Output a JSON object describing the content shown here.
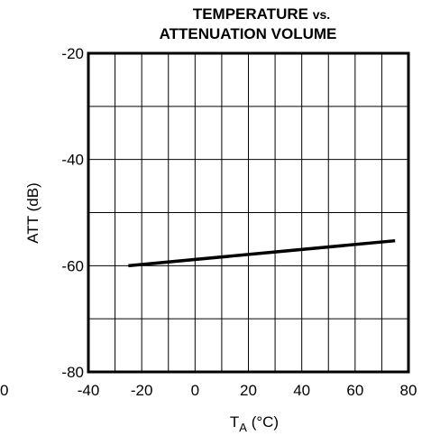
{
  "chart_data": {
    "type": "line",
    "title_line1_main": "TEMPERATURE",
    "title_line1_small": "vs.",
    "title_line2": "ATTENUATION VOLUME",
    "xlabel_main": "T",
    "xlabel_sub": "A",
    "xlabel_unit": " (°C)",
    "ylabel": "ATT (dB)",
    "xlim": [
      -40,
      80
    ],
    "ylim": [
      -80,
      -20
    ],
    "x_ticks": [
      -40,
      -20,
      0,
      20,
      40,
      60,
      80
    ],
    "x_tick_labels": [
      "-40",
      "-20",
      "0",
      "20",
      "40",
      "60",
      "80"
    ],
    "y_ticks": [
      -20,
      -40,
      -60,
      -80
    ],
    "y_tick_labels": [
      "-20",
      "-40",
      "-60",
      "-80"
    ],
    "x_minor_step": 10,
    "y_minor_step": 10,
    "grid": true,
    "stray_left_label": "0",
    "series": [
      {
        "x": [
          -25,
          75
        ],
        "y": [
          -60,
          -55.3
        ],
        "color": "#000000"
      }
    ]
  }
}
